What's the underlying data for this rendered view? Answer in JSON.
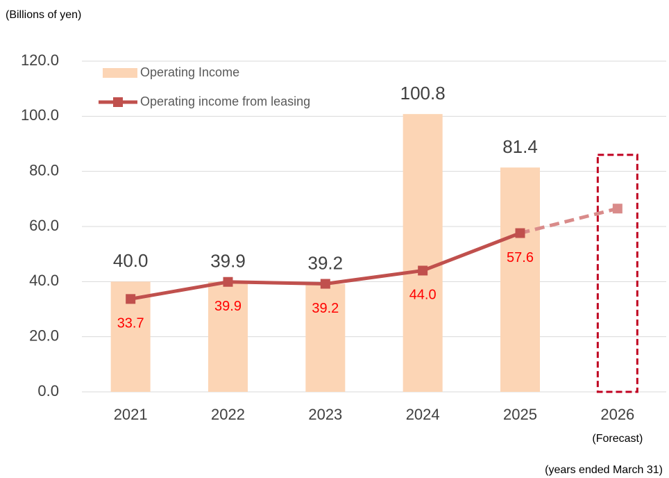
{
  "chart_data": {
    "type": "bar_line",
    "y_axis_label": "(Billions of yen)",
    "note": "(years ended March 31)",
    "categories": [
      "2021",
      "2022",
      "2023",
      "2024",
      "2025",
      "2026"
    ],
    "forecast": {
      "category": "2026",
      "label": "(Forecast)"
    },
    "series": [
      {
        "name": "Operating Income",
        "type": "bar",
        "color": "#fcd5b5",
        "forecast_color": "#c00020",
        "values": [
          40.0,
          39.9,
          39.2,
          100.8,
          81.4,
          86
        ],
        "value_labels": [
          "40.0",
          "39.9",
          "39.2",
          "100.8",
          "81.4",
          null
        ]
      },
      {
        "name": "Operating income from leasing",
        "type": "line",
        "color": "#c0504d",
        "forecast_color": "#d98b8a",
        "label_color": "#ff0000",
        "values": [
          33.7,
          39.9,
          39.2,
          44.0,
          57.6,
          66.5
        ],
        "value_labels": [
          "33.7",
          "39.9",
          "39.2",
          "44.0",
          "57.6",
          null
        ]
      }
    ],
    "ylim": [
      0,
      120
    ],
    "yticks": [
      {
        "value": 0,
        "label": "0.0"
      },
      {
        "value": 20,
        "label": "20.0"
      },
      {
        "value": 40,
        "label": "40.0"
      },
      {
        "value": 60,
        "label": "60.0"
      },
      {
        "value": 80,
        "label": "80.0"
      },
      {
        "value": 100,
        "label": "100.0"
      },
      {
        "value": 120,
        "label": "120.0"
      }
    ],
    "grid": true
  }
}
